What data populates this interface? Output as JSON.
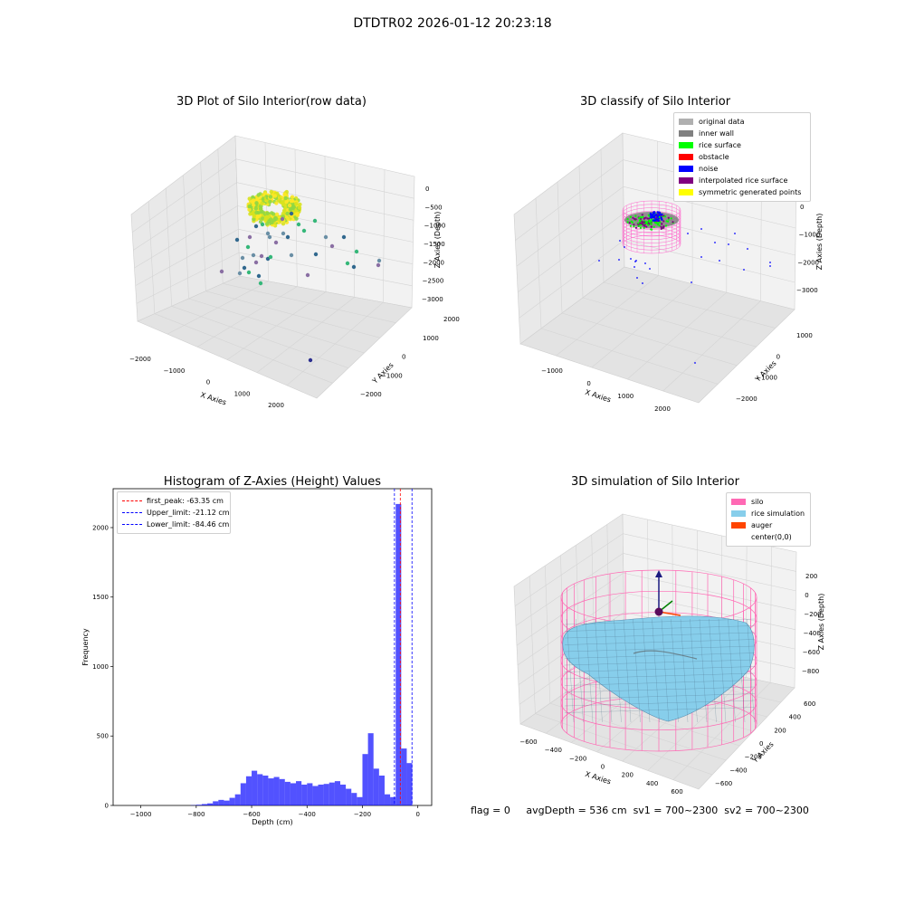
{
  "figure_title": "DTDTR02 2026-01-12 20:23:18",
  "footer": {
    "flag": "flag = 0",
    "avg_depth": "avgDepth = 536 cm",
    "sv1": "sv1 = 700~2300",
    "sv2": "sv2 = 700~2300"
  },
  "chart_data": [
    {
      "type": "scatter",
      "projection": "3d",
      "title": "3D Plot of Silo Interior(row data)",
      "xlabel": "X Axies",
      "ylabel": "Y Axies",
      "zlabel": "Z Axies (Depth)",
      "x_ticks": [
        "−2000",
        "−1000",
        "0",
        "1000",
        "2000"
      ],
      "y_ticks": [
        "−2000",
        "−1000",
        "0",
        "1000",
        "2000"
      ],
      "z_ticks": [
        "0",
        "−500",
        "−1000",
        "−1500",
        "−2000",
        "−2500",
        "−3000"
      ],
      "colormap": [
        "#440154",
        "#31688e",
        "#35b779",
        "#8fd744",
        "#fde725"
      ],
      "grid": true
    },
    {
      "type": "scatter",
      "projection": "3d",
      "title": "3D classify of Silo Interior",
      "xlabel": "X Axies",
      "ylabel": "Y Axies",
      "zlabel": "Z Axies (Depth)",
      "x_ticks": [
        "−1000",
        "0",
        "1000",
        "2000"
      ],
      "y_ticks": [
        "−2000",
        "−1000",
        "0",
        "1000"
      ],
      "z_ticks": [
        "0",
        "−1000",
        "−2000",
        "−3000"
      ],
      "legend": [
        {
          "label": "original data",
          "color": "#b0b0b0"
        },
        {
          "label": "inner wall",
          "color": "#808080"
        },
        {
          "label": "rice surface",
          "color": "#00ff00"
        },
        {
          "label": "obstacle",
          "color": "#ff0000"
        },
        {
          "label": "noise",
          "color": "#0000ff"
        },
        {
          "label": "interpolated rice surface",
          "color": "#800080"
        },
        {
          "label": "symmetric generated points",
          "color": "#ffff00"
        }
      ],
      "legend_position": "top-right",
      "grid": true
    },
    {
      "type": "bar",
      "title": "Histogram of Z-Axies (Height) Values",
      "xlabel": "Depth (cm)",
      "ylabel": "Frequency",
      "xlim": [
        -1100,
        50
      ],
      "ylim": [
        0,
        2280
      ],
      "x_ticks": [
        -1000,
        -800,
        -600,
        -400,
        -200,
        0
      ],
      "x_tick_labels": [
        "−1000",
        "−800",
        "−600",
        "−400",
        "−200",
        "0"
      ],
      "y_ticks": [
        0,
        500,
        1000,
        1500,
        2000
      ],
      "y_tick_labels": [
        "0",
        "500",
        "1000",
        "1500",
        "2000"
      ],
      "bar_color": "#0000ff",
      "bins_start": [
        -820,
        -800,
        -780,
        -760,
        -740,
        -720,
        -700,
        -680,
        -660,
        -640,
        -620,
        -600,
        -580,
        -560,
        -540,
        -520,
        -500,
        -480,
        -460,
        -440,
        -420,
        -400,
        -380,
        -360,
        -340,
        -320,
        -300,
        -280,
        -260,
        -240,
        -220,
        -200,
        -180,
        -160,
        -140,
        -120,
        -100,
        -80,
        -60,
        -40,
        -20
      ],
      "bin_width": 20,
      "values": [
        2,
        5,
        10,
        15,
        30,
        40,
        35,
        55,
        80,
        160,
        210,
        250,
        225,
        215,
        195,
        205,
        190,
        170,
        160,
        175,
        150,
        160,
        140,
        150,
        155,
        165,
        175,
        150,
        120,
        90,
        60,
        370,
        520,
        265,
        215,
        80,
        60,
        2170,
        410,
        305,
        0
      ],
      "lines": [
        {
          "label": "first_peak: -63.35 cm",
          "x": -63.35,
          "color": "#ff0000"
        },
        {
          "label": "Upper_limit: -21.12 cm",
          "x": -21.12,
          "color": "#0000ff"
        },
        {
          "label": "Lower_limit: -84.46 cm",
          "x": -84.46,
          "color": "#0000ff"
        }
      ],
      "legend_position": "top-left"
    },
    {
      "type": "surface",
      "projection": "3d",
      "title": "3D simulation of Silo Interior",
      "xlabel": "X Axies",
      "ylabel": "Y Axies",
      "zlabel": "Z Axies (Depth)",
      "x_ticks": [
        "−600",
        "−400",
        "−200",
        "0",
        "200",
        "400",
        "600"
      ],
      "y_ticks": [
        "−600",
        "−400",
        "−200",
        "0",
        "200",
        "400",
        "600"
      ],
      "z_ticks": [
        "200",
        "0",
        "−200",
        "−400",
        "−600",
        "−800"
      ],
      "legend": [
        {
          "label": "silo",
          "color": "#ff69b4"
        },
        {
          "label": "rice simulation",
          "color": "#87ceeb"
        },
        {
          "label": "auger",
          "color": "#ff4500"
        },
        {
          "label": "center(0,0)",
          "color": "#ffffff"
        }
      ],
      "legend_position": "top-right",
      "grid": true
    }
  ]
}
